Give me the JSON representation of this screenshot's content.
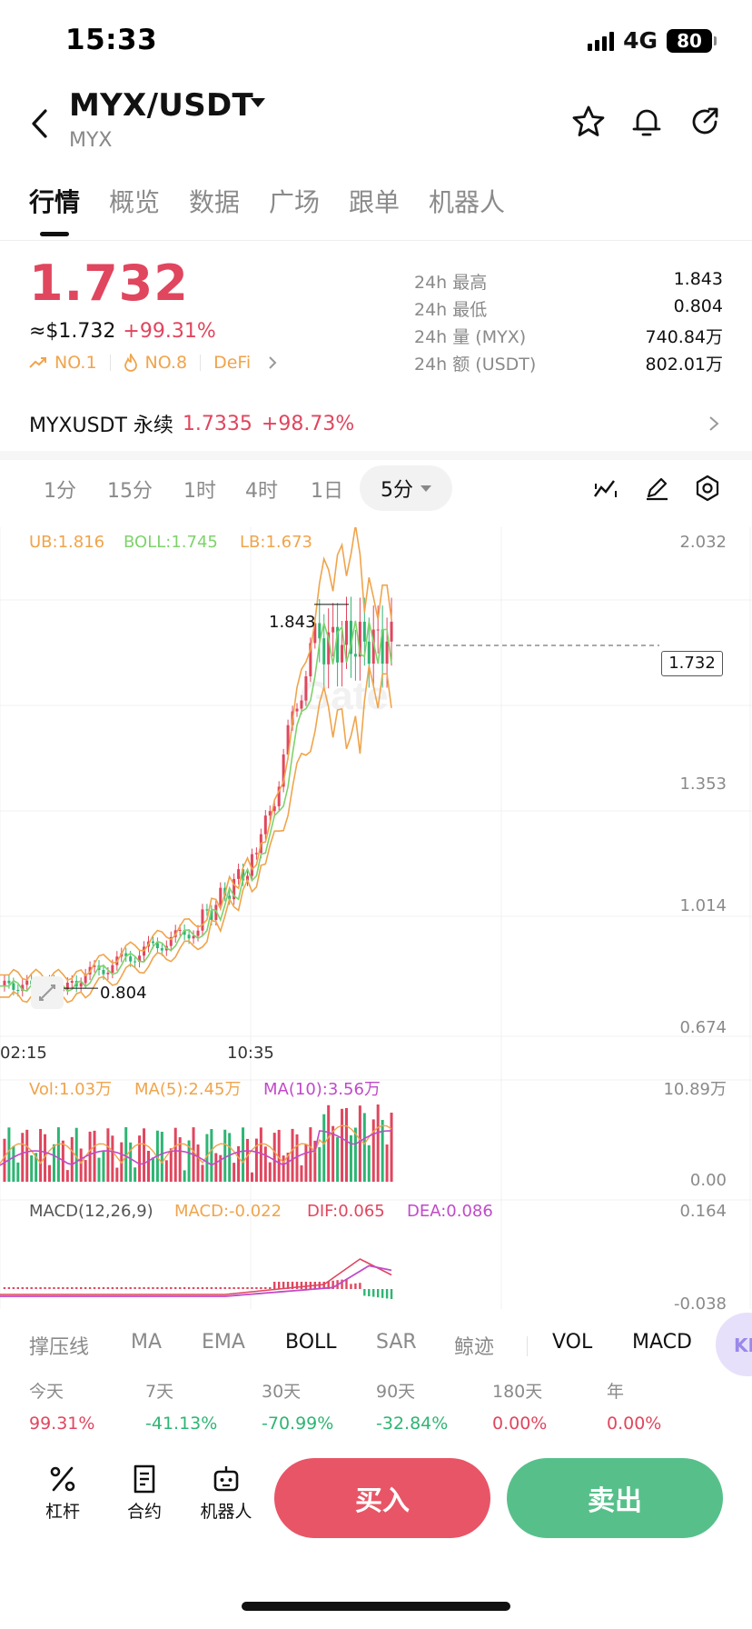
{
  "status_bar": {
    "time": "15:33",
    "network": "4G",
    "battery": "80"
  },
  "header": {
    "pair": "MYX/USDT",
    "subname": "MYX"
  },
  "tabs": [
    "行情",
    "概览",
    "数据",
    "广场",
    "跟单",
    "机器人"
  ],
  "price": {
    "last": "1.732",
    "usd_approx": "≈$1.732",
    "change": "+99.31%",
    "rank1": "NO.1",
    "rank2": "NO.8",
    "tag": "DeFi"
  },
  "stats": [
    {
      "label": "24h  最高",
      "value": "1.843"
    },
    {
      "label": "24h  最低",
      "value": "0.804"
    },
    {
      "label": "24h  量 (MYX)",
      "value": "740.84万"
    },
    {
      "label": "24h  额 (USDT)",
      "value": "802.01万"
    }
  ],
  "perpetual": {
    "name": "MYXUSDT 永续",
    "price": "1.7335",
    "change": "+98.73%"
  },
  "timeframes": [
    "1分",
    "15分",
    "1时",
    "4时",
    "1日"
  ],
  "timeframe_active": "5分",
  "chart": {
    "boll_ub": "UB:1.816",
    "boll_mid": "BOLL:1.745",
    "boll_lb": "LB:1.673",
    "y_ticks": [
      "2.032",
      "1.353",
      "1.014",
      "0.674"
    ],
    "high_marker": "1.843",
    "low_marker": "0.804",
    "last_price_tag": "1.732",
    "x_ticks": [
      "02:15",
      "10:35"
    ],
    "vol_label": "Vol:1.03万",
    "vol_ma5": "MA(5):2.45万",
    "vol_ma10": "MA(10):3.56万",
    "vol_max": "10.89万",
    "vol_min": "0.00",
    "macd_label": "MACD(12,26,9)",
    "macd_val": "MACD:-0.022",
    "dif": "DIF:0.065",
    "dea": "DEA:0.086",
    "macd_max": "0.164",
    "macd_min": "-0.038",
    "colors": {
      "up": "#e0465e",
      "down": "#2eb573",
      "ub": "#f0a44b",
      "mid": "#7ed36b",
      "macd": "#c04ac9"
    }
  },
  "indicators": [
    "撑压线",
    "MA",
    "EMA",
    "BOLL",
    "SAR",
    "鲸迹",
    "VOL",
    "MACD"
  ],
  "indicator_active": [
    "BOLL",
    "VOL",
    "MACD"
  ],
  "float_button": "KD",
  "performance": [
    {
      "label": "今天",
      "value": "99.31%",
      "dir": "up"
    },
    {
      "label": "7天",
      "value": "-41.13%",
      "dir": "down"
    },
    {
      "label": "30天",
      "value": "-70.99%",
      "dir": "down"
    },
    {
      "label": "90天",
      "value": "-32.84%",
      "dir": "down"
    },
    {
      "label": "180天",
      "value": "0.00%",
      "dir": "up"
    },
    {
      "label": "年",
      "value": "0.00%",
      "dir": "up"
    }
  ],
  "bottom": {
    "leverage": "杠杆",
    "contract": "合约",
    "robot": "机器人",
    "buy": "买入",
    "sell": "卖出"
  }
}
